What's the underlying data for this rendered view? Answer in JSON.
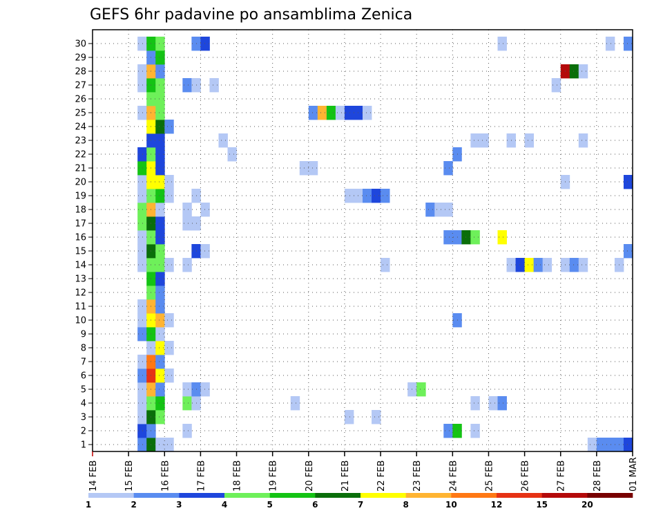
{
  "chart_data": {
    "type": "heatmap",
    "title": "GEFS 6hr padavine po ansamblima Zenica",
    "y_categories": [
      "1",
      "2",
      "3",
      "4",
      "5",
      "6",
      "7",
      "8",
      "9",
      "10",
      "11",
      "12",
      "13",
      "14",
      "15",
      "16",
      "17",
      "18",
      "19",
      "20",
      "21",
      "22",
      "23",
      "24",
      "25",
      "26",
      "27",
      "28",
      "29",
      "30"
    ],
    "x_tick_labels": [
      "14 FEB",
      "15 FEB",
      "16 FEB",
      "17 FEB",
      "18 FEB",
      "19 FEB",
      "20 FEB",
      "21 FEB",
      "22 FEB",
      "23 FEB",
      "24 FEB",
      "25 FEB",
      "26 FEB",
      "27 FEB",
      "28 FEB",
      "01 MAR"
    ],
    "x_steps_per_day": 4,
    "x_total_steps": 60,
    "grid": true,
    "colorbar": {
      "labels": [
        "1",
        "2",
        "3",
        "4",
        "5",
        "6",
        "7",
        "8",
        "10",
        "12",
        "15",
        "20"
      ],
      "colors": [
        "#b4c8f5",
        "#5a8cf0",
        "#1e46dc",
        "#6ef05a",
        "#14c314",
        "#0a6e0a",
        "#ffff00",
        "#ffb432",
        "#ff7814",
        "#e63214",
        "#b40a0a",
        "#780000"
      ]
    },
    "cells": [
      {
        "m": 1,
        "t": 5,
        "c": 1
      },
      {
        "m": 1,
        "t": 6,
        "c": 5
      },
      {
        "m": 1,
        "t": 7,
        "c": 0
      },
      {
        "m": 1,
        "t": 8,
        "c": 0
      },
      {
        "m": 1,
        "t": 55,
        "c": 0
      },
      {
        "m": 1,
        "t": 56,
        "c": 1
      },
      {
        "m": 1,
        "t": 57,
        "c": 1
      },
      {
        "m": 1,
        "t": 58,
        "c": 1
      },
      {
        "m": 1,
        "t": 59,
        "c": 2
      },
      {
        "m": 2,
        "t": 5,
        "c": 2
      },
      {
        "m": 2,
        "t": 6,
        "c": 1
      },
      {
        "m": 2,
        "t": 39,
        "c": 1
      },
      {
        "m": 2,
        "t": 40,
        "c": 4
      },
      {
        "m": 2,
        "t": 42,
        "c": 0
      },
      {
        "m": 2,
        "t": 10,
        "c": 0
      },
      {
        "m": 3,
        "t": 5,
        "c": 0
      },
      {
        "m": 3,
        "t": 6,
        "c": 5
      },
      {
        "m": 3,
        "t": 7,
        "c": 3
      },
      {
        "m": 3,
        "t": 28,
        "c": 0
      },
      {
        "m": 3,
        "t": 31,
        "c": 0
      },
      {
        "m": 4,
        "t": 5,
        "c": 0
      },
      {
        "m": 4,
        "t": 6,
        "c": 3
      },
      {
        "m": 4,
        "t": 7,
        "c": 4
      },
      {
        "m": 4,
        "t": 10,
        "c": 3
      },
      {
        "m": 4,
        "t": 11,
        "c": 0
      },
      {
        "m": 4,
        "t": 22,
        "c": 0
      },
      {
        "m": 4,
        "t": 42,
        "c": 0
      },
      {
        "m": 4,
        "t": 44,
        "c": 0
      },
      {
        "m": 4,
        "t": 45,
        "c": 1
      },
      {
        "m": 5,
        "t": 5,
        "c": 0
      },
      {
        "m": 5,
        "t": 6,
        "c": 7
      },
      {
        "m": 5,
        "t": 7,
        "c": 1
      },
      {
        "m": 5,
        "t": 10,
        "c": 0
      },
      {
        "m": 5,
        "t": 11,
        "c": 1
      },
      {
        "m": 5,
        "t": 12,
        "c": 0
      },
      {
        "m": 5,
        "t": 35,
        "c": 0
      },
      {
        "m": 5,
        "t": 36,
        "c": 3
      },
      {
        "m": 6,
        "t": 5,
        "c": 1
      },
      {
        "m": 6,
        "t": 6,
        "c": 9
      },
      {
        "m": 6,
        "t": 7,
        "c": 6
      },
      {
        "m": 6,
        "t": 8,
        "c": 0
      },
      {
        "m": 7,
        "t": 5,
        "c": 0
      },
      {
        "m": 7,
        "t": 6,
        "c": 8
      },
      {
        "m": 7,
        "t": 7,
        "c": 1
      },
      {
        "m": 8,
        "t": 6,
        "c": 0
      },
      {
        "m": 8,
        "t": 7,
        "c": 6
      },
      {
        "m": 8,
        "t": 8,
        "c": 0
      },
      {
        "m": 9,
        "t": 5,
        "c": 1
      },
      {
        "m": 9,
        "t": 6,
        "c": 4
      },
      {
        "m": 9,
        "t": 7,
        "c": 0
      },
      {
        "m": 10,
        "t": 5,
        "c": 0
      },
      {
        "m": 10,
        "t": 6,
        "c": 6
      },
      {
        "m": 10,
        "t": 7,
        "c": 7
      },
      {
        "m": 10,
        "t": 8,
        "c": 0
      },
      {
        "m": 10,
        "t": 40,
        "c": 1
      },
      {
        "m": 11,
        "t": 5,
        "c": 0
      },
      {
        "m": 11,
        "t": 6,
        "c": 7
      },
      {
        "m": 11,
        "t": 7,
        "c": 1
      },
      {
        "m": 12,
        "t": 6,
        "c": 3
      },
      {
        "m": 12,
        "t": 7,
        "c": 1
      },
      {
        "m": 13,
        "t": 6,
        "c": 4
      },
      {
        "m": 13,
        "t": 7,
        "c": 2
      },
      {
        "m": 14,
        "t": 5,
        "c": 0
      },
      {
        "m": 14,
        "t": 6,
        "c": 3
      },
      {
        "m": 14,
        "t": 7,
        "c": 3
      },
      {
        "m": 14,
        "t": 8,
        "c": 0
      },
      {
        "m": 14,
        "t": 10,
        "c": 0
      },
      {
        "m": 14,
        "t": 32,
        "c": 0
      },
      {
        "m": 14,
        "t": 46,
        "c": 0
      },
      {
        "m": 14,
        "t": 47,
        "c": 2
      },
      {
        "m": 14,
        "t": 48,
        "c": 6
      },
      {
        "m": 14,
        "t": 49,
        "c": 1
      },
      {
        "m": 14,
        "t": 50,
        "c": 0
      },
      {
        "m": 14,
        "t": 52,
        "c": 0
      },
      {
        "m": 14,
        "t": 53,
        "c": 1
      },
      {
        "m": 14,
        "t": 54,
        "c": 0
      },
      {
        "m": 14,
        "t": 58,
        "c": 0
      },
      {
        "m": 15,
        "t": 5,
        "c": 0
      },
      {
        "m": 15,
        "t": 6,
        "c": 5
      },
      {
        "m": 15,
        "t": 7,
        "c": 3
      },
      {
        "m": 15,
        "t": 11,
        "c": 2
      },
      {
        "m": 15,
        "t": 12,
        "c": 0
      },
      {
        "m": 15,
        "t": 59,
        "c": 1
      },
      {
        "m": 16,
        "t": 5,
        "c": 0
      },
      {
        "m": 16,
        "t": 6,
        "c": 3
      },
      {
        "m": 16,
        "t": 7,
        "c": 2
      },
      {
        "m": 16,
        "t": 39,
        "c": 1
      },
      {
        "m": 16,
        "t": 40,
        "c": 1
      },
      {
        "m": 16,
        "t": 41,
        "c": 5
      },
      {
        "m": 16,
        "t": 42,
        "c": 3
      },
      {
        "m": 16,
        "t": 45,
        "c": 6
      },
      {
        "m": 17,
        "t": 5,
        "c": 3
      },
      {
        "m": 17,
        "t": 6,
        "c": 5
      },
      {
        "m": 17,
        "t": 7,
        "c": 2
      },
      {
        "m": 17,
        "t": 10,
        "c": 0
      },
      {
        "m": 17,
        "t": 11,
        "c": 0
      },
      {
        "m": 18,
        "t": 5,
        "c": 3
      },
      {
        "m": 18,
        "t": 6,
        "c": 7
      },
      {
        "m": 18,
        "t": 7,
        "c": 0
      },
      {
        "m": 18,
        "t": 10,
        "c": 0
      },
      {
        "m": 18,
        "t": 12,
        "c": 0
      },
      {
        "m": 18,
        "t": 37,
        "c": 1
      },
      {
        "m": 18,
        "t": 38,
        "c": 0
      },
      {
        "m": 18,
        "t": 39,
        "c": 0
      },
      {
        "m": 19,
        "t": 5,
        "c": 0
      },
      {
        "m": 19,
        "t": 6,
        "c": 3
      },
      {
        "m": 19,
        "t": 7,
        "c": 4
      },
      {
        "m": 19,
        "t": 8,
        "c": 0
      },
      {
        "m": 19,
        "t": 11,
        "c": 0
      },
      {
        "m": 19,
        "t": 28,
        "c": 0
      },
      {
        "m": 19,
        "t": 29,
        "c": 0
      },
      {
        "m": 19,
        "t": 30,
        "c": 1
      },
      {
        "m": 19,
        "t": 31,
        "c": 2
      },
      {
        "m": 19,
        "t": 32,
        "c": 1
      },
      {
        "m": 20,
        "t": 5,
        "c": 0
      },
      {
        "m": 20,
        "t": 6,
        "c": 6
      },
      {
        "m": 20,
        "t": 7,
        "c": 6
      },
      {
        "m": 20,
        "t": 8,
        "c": 0
      },
      {
        "m": 20,
        "t": 52,
        "c": 0
      },
      {
        "m": 20,
        "t": 59,
        "c": 2
      },
      {
        "m": 21,
        "t": 5,
        "c": 4
      },
      {
        "m": 21,
        "t": 6,
        "c": 6
      },
      {
        "m": 21,
        "t": 7,
        "c": 2
      },
      {
        "m": 21,
        "t": 23,
        "c": 0
      },
      {
        "m": 21,
        "t": 24,
        "c": 0
      },
      {
        "m": 21,
        "t": 39,
        "c": 1
      },
      {
        "m": 22,
        "t": 5,
        "c": 2
      },
      {
        "m": 22,
        "t": 6,
        "c": 3
      },
      {
        "m": 22,
        "t": 7,
        "c": 2
      },
      {
        "m": 22,
        "t": 15,
        "c": 0
      },
      {
        "m": 22,
        "t": 40,
        "c": 1
      },
      {
        "m": 23,
        "t": 6,
        "c": 2
      },
      {
        "m": 23,
        "t": 7,
        "c": 2
      },
      {
        "m": 23,
        "t": 14,
        "c": 0
      },
      {
        "m": 23,
        "t": 42,
        "c": 0
      },
      {
        "m": 23,
        "t": 43,
        "c": 0
      },
      {
        "m": 23,
        "t": 46,
        "c": 0
      },
      {
        "m": 23,
        "t": 48,
        "c": 0
      },
      {
        "m": 23,
        "t": 54,
        "c": 0
      },
      {
        "m": 24,
        "t": 6,
        "c": 6
      },
      {
        "m": 24,
        "t": 7,
        "c": 5
      },
      {
        "m": 24,
        "t": 8,
        "c": 1
      },
      {
        "m": 25,
        "t": 5,
        "c": 0
      },
      {
        "m": 25,
        "t": 6,
        "c": 7
      },
      {
        "m": 25,
        "t": 7,
        "c": 3
      },
      {
        "m": 25,
        "t": 24,
        "c": 1
      },
      {
        "m": 25,
        "t": 25,
        "c": 7
      },
      {
        "m": 25,
        "t": 26,
        "c": 4
      },
      {
        "m": 25,
        "t": 27,
        "c": 0
      },
      {
        "m": 25,
        "t": 28,
        "c": 2
      },
      {
        "m": 25,
        "t": 29,
        "c": 2
      },
      {
        "m": 25,
        "t": 30,
        "c": 0
      },
      {
        "m": 26,
        "t": 6,
        "c": 3
      },
      {
        "m": 26,
        "t": 7,
        "c": 3
      },
      {
        "m": 27,
        "t": 5,
        "c": 0
      },
      {
        "m": 27,
        "t": 6,
        "c": 4
      },
      {
        "m": 27,
        "t": 7,
        "c": 3
      },
      {
        "m": 27,
        "t": 10,
        "c": 1
      },
      {
        "m": 27,
        "t": 11,
        "c": 0
      },
      {
        "m": 27,
        "t": 13,
        "c": 0
      },
      {
        "m": 27,
        "t": 51,
        "c": 0
      },
      {
        "m": 28,
        "t": 5,
        "c": 0
      },
      {
        "m": 28,
        "t": 6,
        "c": 7
      },
      {
        "m": 28,
        "t": 7,
        "c": 1
      },
      {
        "m": 28,
        "t": 52,
        "c": 10
      },
      {
        "m": 28,
        "t": 53,
        "c": 5
      },
      {
        "m": 28,
        "t": 54,
        "c": 0
      },
      {
        "m": 29,
        "t": 6,
        "c": 1
      },
      {
        "m": 29,
        "t": 7,
        "c": 4
      },
      {
        "m": 30,
        "t": 5,
        "c": 0
      },
      {
        "m": 30,
        "t": 6,
        "c": 4
      },
      {
        "m": 30,
        "t": 7,
        "c": 3
      },
      {
        "m": 30,
        "t": 11,
        "c": 1
      },
      {
        "m": 30,
        "t": 12,
        "c": 2
      },
      {
        "m": 30,
        "t": 45,
        "c": 0
      },
      {
        "m": 30,
        "t": 57,
        "c": 0
      },
      {
        "m": 30,
        "t": 59,
        "c": 1
      }
    ]
  }
}
